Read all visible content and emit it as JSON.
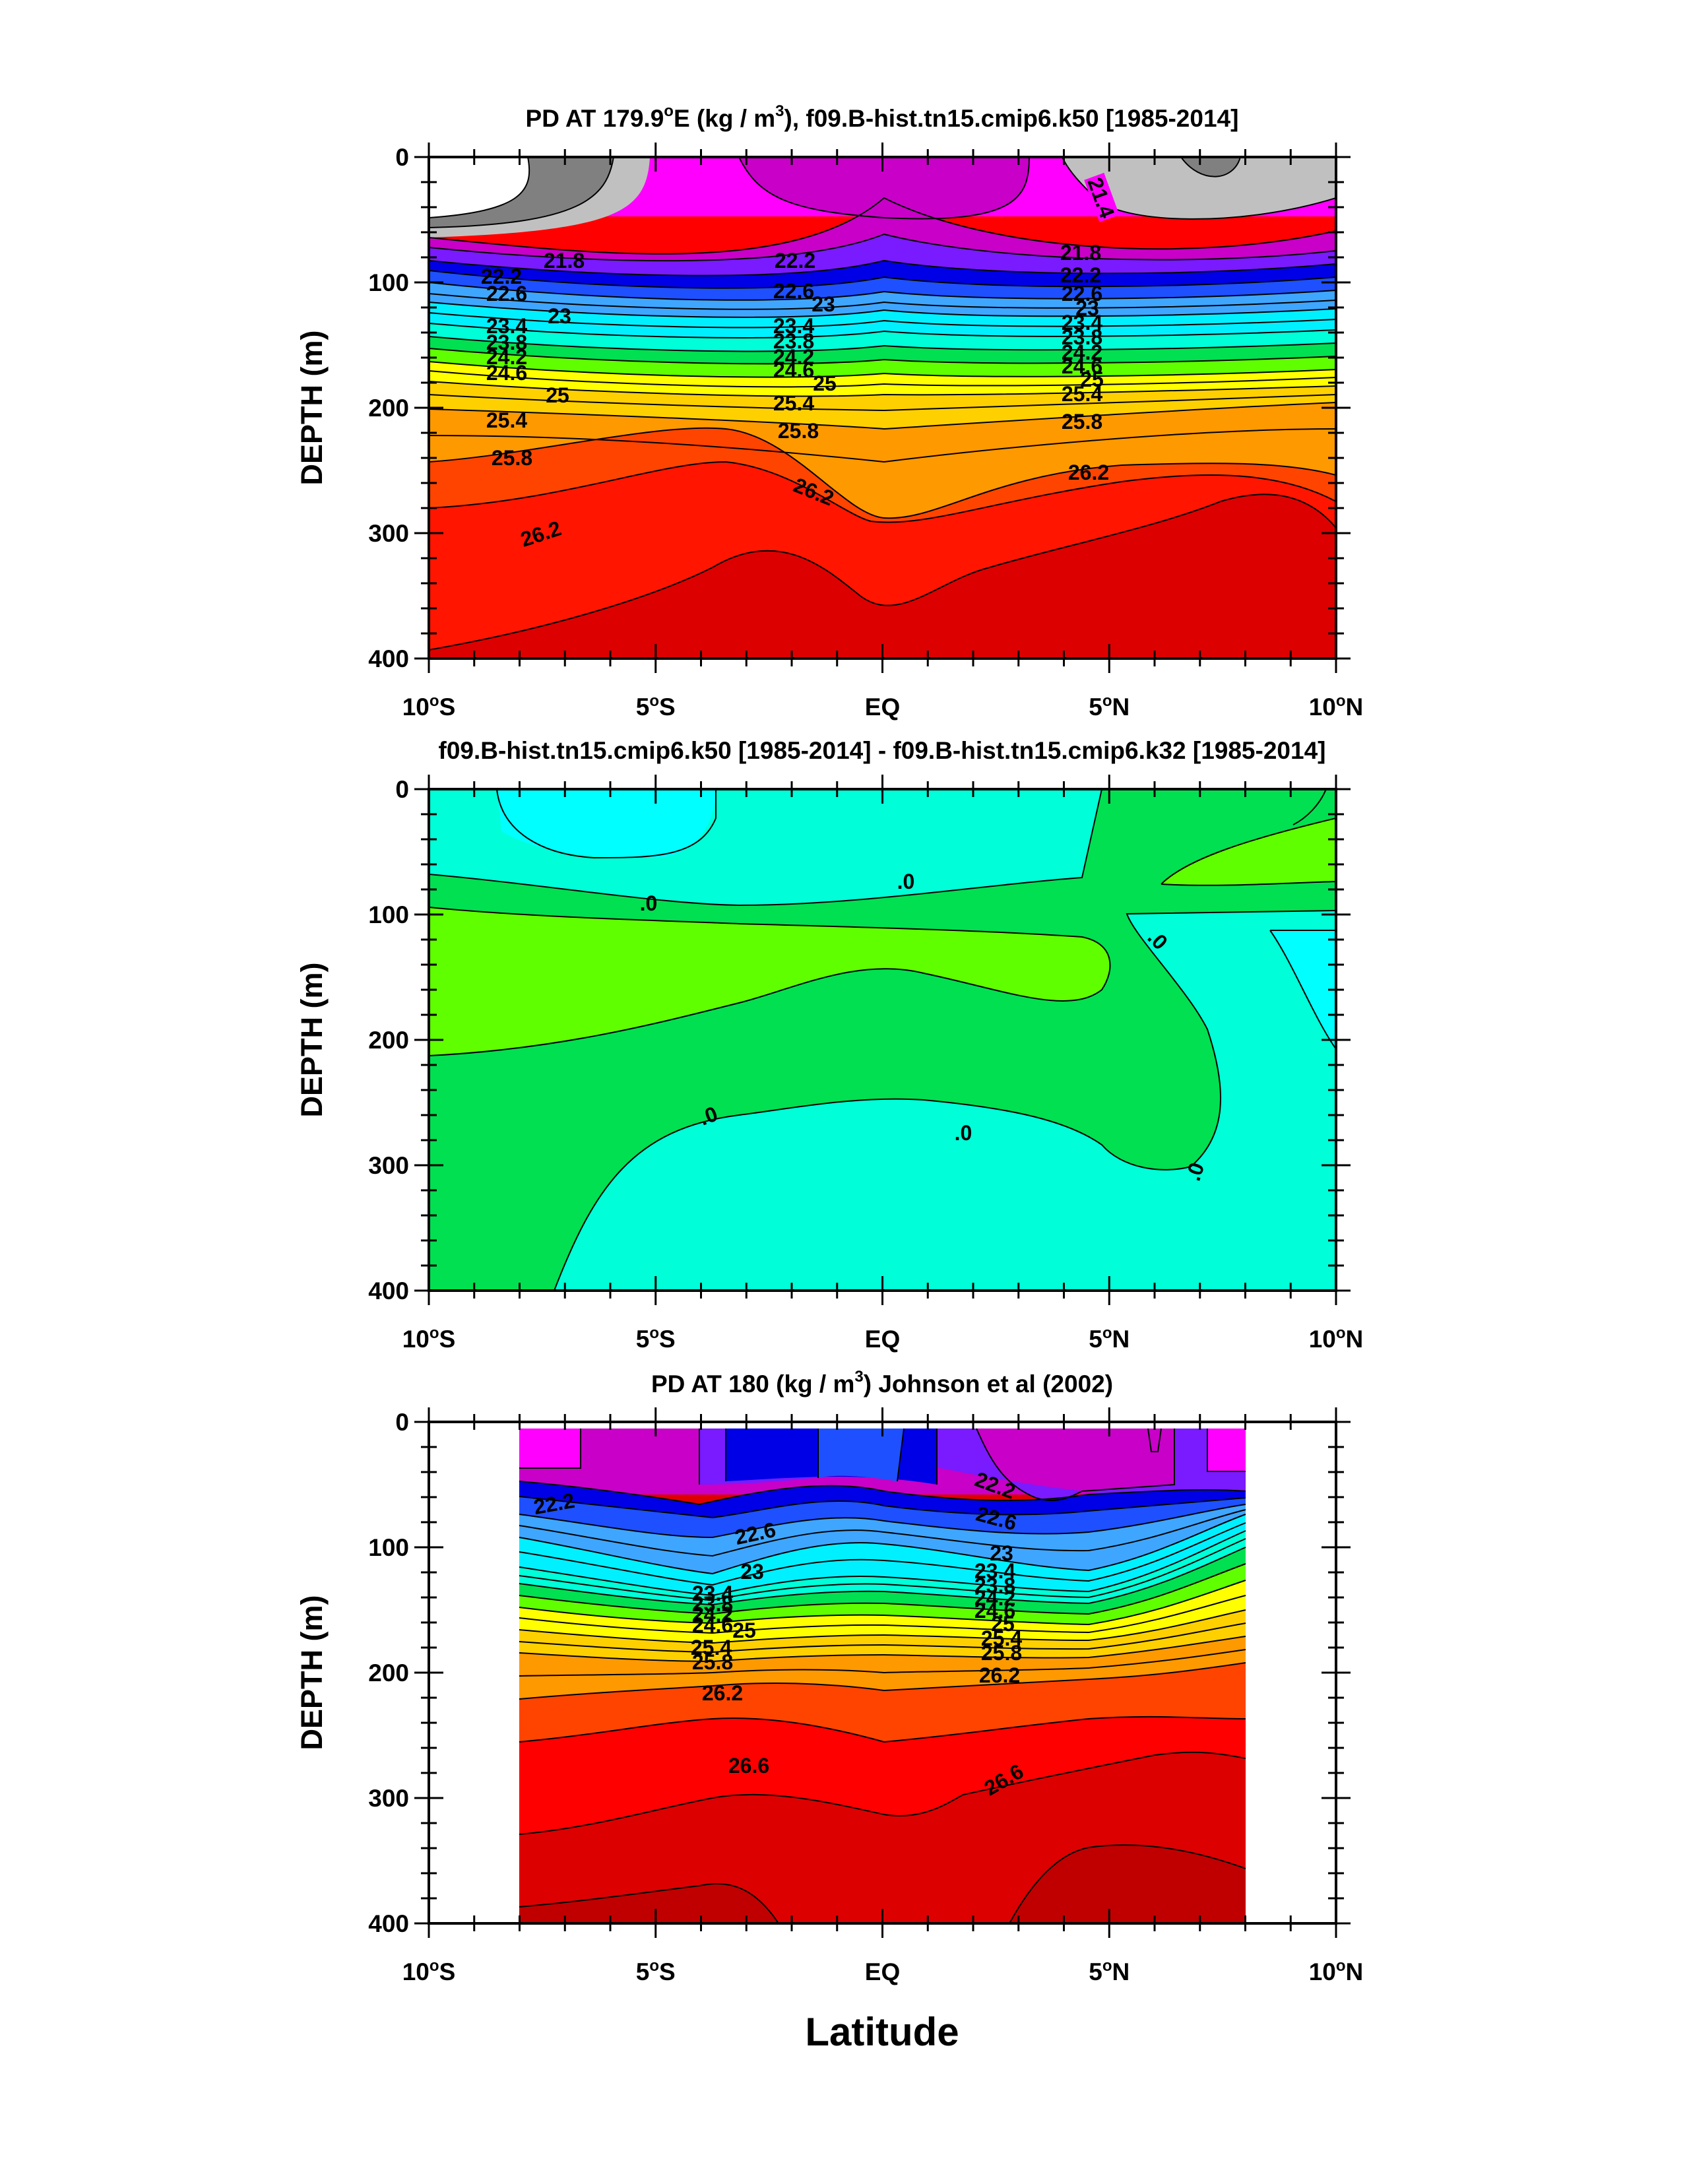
{
  "chart_data": [
    {
      "type": "contour",
      "title": "PD AT 179.9°E (kg / m³), f09.B-hist.tn15.cmip6.k50 [1985-2014]",
      "title_parts": {
        "pre": "PD AT 179.9",
        "sup1": "o",
        "mid": "E (kg / m",
        "sup2": "3",
        "post": "), f09.B-hist.tn15.cmip6.k50 [1985-2014]"
      },
      "ylabel": "DEPTH (m)",
      "ylim": [
        400,
        0
      ],
      "xlim": [
        -10,
        10
      ],
      "contour_labels": [
        "21.4",
        "21.8",
        "22.2",
        "22.6",
        "23",
        "23.4",
        "23.8",
        "24.2",
        "24.6",
        "25",
        "25.4",
        "25.8",
        "26.2"
      ],
      "isopycnal_depths_m": [
        {
          "level": 21.8,
          "lat": [
            -10,
            -5,
            0,
            5,
            10
          ],
          "depth": [
            75,
            80,
            45,
            80,
            65
          ]
        },
        {
          "level": 22.2,
          "lat": [
            -10,
            -5,
            0,
            5,
            10
          ],
          "depth": [
            90,
            95,
            80,
            90,
            88
          ]
        },
        {
          "level": 22.6,
          "lat": [
            -10,
            -5,
            0,
            5,
            10
          ],
          "depth": [
            105,
            110,
            105,
            105,
            100
          ]
        },
        {
          "level": 23.0,
          "lat": [
            -10,
            -5,
            0,
            5,
            10
          ],
          "depth": [
            118,
            125,
            120,
            118,
            112
          ]
        },
        {
          "level": 23.4,
          "lat": [
            -10,
            -5,
            0,
            5,
            10
          ],
          "depth": [
            130,
            138,
            135,
            132,
            125
          ]
        },
        {
          "level": 23.8,
          "lat": [
            -10,
            -5,
            0,
            5,
            10
          ],
          "depth": [
            142,
            150,
            148,
            144,
            137
          ]
        },
        {
          "level": 24.2,
          "lat": [
            -10,
            -5,
            0,
            5,
            10
          ],
          "depth": [
            154,
            162,
            160,
            156,
            150
          ]
        },
        {
          "level": 24.6,
          "lat": [
            -10,
            -5,
            0,
            5,
            10
          ],
          "depth": [
            166,
            174,
            172,
            168,
            162
          ]
        },
        {
          "level": 25.0,
          "lat": [
            -10,
            -5,
            0,
            5,
            10
          ],
          "depth": [
            180,
            186,
            186,
            180,
            175
          ]
        },
        {
          "level": 25.4,
          "lat": [
            -10,
            -5,
            0,
            5,
            10
          ],
          "depth": [
            198,
            200,
            205,
            196,
            190
          ]
        },
        {
          "level": 25.8,
          "lat": [
            -10,
            -5,
            0,
            5,
            10
          ],
          "depth": [
            225,
            222,
            235,
            218,
            210
          ]
        },
        {
          "level": 26.2,
          "lat": [
            -10,
            -5,
            0,
            5,
            10
          ],
          "depth": [
            275,
            255,
            285,
            250,
            255
          ]
        },
        {
          "level": 26.6,
          "lat": [
            -10,
            -5,
            0,
            5,
            10
          ],
          "depth": [
            390,
            345,
            360,
            320,
            300
          ]
        }
      ]
    },
    {
      "type": "contour",
      "title": "f09.B-hist.tn15.cmip6.k50 [1985-2014] - f09.B-hist.tn15.cmip6.k32 [1985-2014]",
      "ylabel": "DEPTH (m)",
      "ylim": [
        400,
        0
      ],
      "xlim": [
        -10,
        10
      ],
      "contour_labels": [
        ".0",
        ".0",
        ".0",
        ".0",
        ".0",
        ".0"
      ]
    },
    {
      "type": "contour",
      "title": "PD AT 180 (kg / m³) Johnson et al (2002)",
      "title_parts": {
        "pre": "PD AT 180 (kg / m",
        "sup": "3",
        "post": ") Johnson et al (2002)"
      },
      "ylabel": "DEPTH (m)",
      "xlabel": "Latitude",
      "ylim": [
        400,
        0
      ],
      "xlim": [
        -10,
        10
      ],
      "data_lat_range": [
        -8,
        8
      ],
      "contour_labels": [
        "22.2",
        "22.6",
        "23",
        "23.4",
        "23.8",
        "24.2",
        "24.6",
        "25",
        "25.4",
        "25.8",
        "26.2",
        "26.6"
      ],
      "isopycnal_depths_m": [
        {
          "level": 22.2,
          "lat": [
            -8,
            -4,
            0,
            4,
            8
          ],
          "depth": [
            60,
            75,
            55,
            70,
            65
          ]
        },
        {
          "level": 22.6,
          "lat": [
            -8,
            -4,
            0,
            4,
            8
          ],
          "depth": [
            85,
            100,
            80,
            95,
            80
          ]
        },
        {
          "level": 23.4,
          "lat": [
            -8,
            -4,
            0,
            4,
            8
          ],
          "depth": [
            110,
            140,
            125,
            140,
            110
          ]
        },
        {
          "level": 24.2,
          "lat": [
            -8,
            -4,
            0,
            4,
            8
          ],
          "depth": [
            150,
            162,
            150,
            160,
            130
          ]
        },
        {
          "level": 25.0,
          "lat": [
            -8,
            -4,
            0,
            4,
            8
          ],
          "depth": [
            170,
            178,
            172,
            178,
            155
          ]
        },
        {
          "level": 25.8,
          "lat": [
            -8,
            -4,
            0,
            4,
            8
          ],
          "depth": [
            200,
            198,
            196,
            198,
            180
          ]
        },
        {
          "level": 26.2,
          "lat": [
            -8,
            -4,
            0,
            4,
            8
          ],
          "depth": [
            230,
            215,
            225,
            212,
            200
          ]
        },
        {
          "level": 26.6,
          "lat": [
            -8,
            -4,
            0,
            4,
            8
          ],
          "depth": [
            275,
            265,
            300,
            265,
            240
          ]
        }
      ]
    }
  ],
  "axes": {
    "x_ticks": [
      "10°S",
      "5°S",
      "EQ",
      "5°N",
      "10°N"
    ],
    "x_tick_parts": [
      {
        "num": "10",
        "sup": "o",
        "hem": "S"
      },
      {
        "num": "5",
        "sup": "o",
        "hem": "S"
      },
      {
        "num": "EQ",
        "sup": "",
        "hem": ""
      },
      {
        "num": "5",
        "sup": "o",
        "hem": "N"
      },
      {
        "num": "10",
        "sup": "o",
        "hem": "N"
      }
    ],
    "y_ticks": [
      "0",
      "100",
      "200",
      "300",
      "400"
    ]
  },
  "colors": {
    "white": "#ffffff",
    "gray_dark": "#7a7a7a",
    "gray_light": "#c0c0c0",
    "magenta": "#ff00ff",
    "violet": "#c800c8",
    "purple": "#7a1aff",
    "blue_dark": "#0000e6",
    "blue": "#1e50ff",
    "sky": "#3fa6ff",
    "cyan": "#00f0ff",
    "aqua": "#00ffd8",
    "green": "#00e050",
    "lime": "#60ff00",
    "yellow": "#ffff00",
    "orange": "#ff9900",
    "red_orange": "#ff4400",
    "red": "#ff0000",
    "dark_red": "#cc0000"
  }
}
